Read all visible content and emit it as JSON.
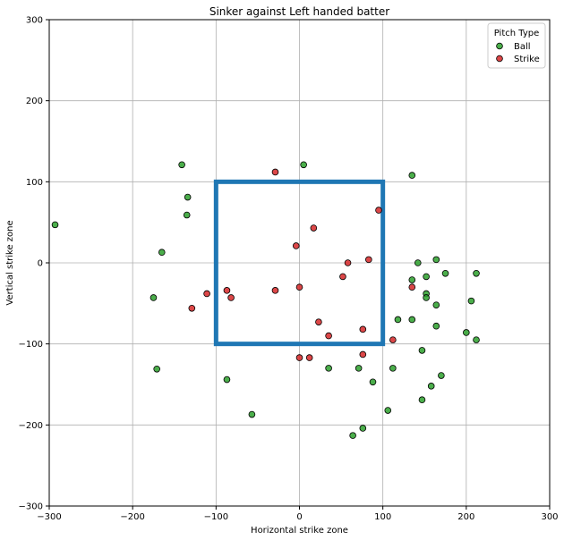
{
  "chart_data": {
    "type": "scatter",
    "title": "Sinker against Left handed batter",
    "xlabel": "Horizontal strike zone",
    "ylabel": "Vertical strike zone",
    "xlim": [
      -300,
      300
    ],
    "ylim": [
      -300,
      300
    ],
    "xticks": [
      -300,
      -200,
      -100,
      0,
      100,
      200,
      300
    ],
    "yticks": [
      -300,
      -200,
      -100,
      0,
      100,
      200,
      300
    ],
    "grid": true,
    "legend": {
      "title": "Pitch Type",
      "placement": "top-right"
    },
    "strike_zone": {
      "x": [
        -100,
        100
      ],
      "y": [
        -100,
        100
      ],
      "color": "#1f77b4"
    },
    "series": [
      {
        "name": "Ball",
        "color": "#2ca02c",
        "points": [
          [
            -293,
            47
          ],
          [
            -141,
            121
          ],
          [
            -134,
            81
          ],
          [
            -135,
            59
          ],
          [
            -165,
            13
          ],
          [
            -175,
            -43
          ],
          [
            -171,
            -131
          ],
          [
            -87,
            -144
          ],
          [
            -57,
            -187
          ],
          [
            5,
            121
          ],
          [
            135,
            108
          ],
          [
            142,
            0
          ],
          [
            164,
            4
          ],
          [
            175,
            -13
          ],
          [
            212,
            -13
          ],
          [
            135,
            -21
          ],
          [
            152,
            -17
          ],
          [
            152,
            -38
          ],
          [
            152,
            -43
          ],
          [
            164,
            -52
          ],
          [
            206,
            -47
          ],
          [
            118,
            -70
          ],
          [
            135,
            -70
          ],
          [
            164,
            -78
          ],
          [
            200,
            -86
          ],
          [
            212,
            -95
          ],
          [
            147,
            -108
          ],
          [
            35,
            -130
          ],
          [
            71,
            -130
          ],
          [
            112,
            -130
          ],
          [
            170,
            -139
          ],
          [
            88,
            -147
          ],
          [
            158,
            -152
          ],
          [
            106,
            -182
          ],
          [
            147,
            -169
          ],
          [
            76,
            -204
          ],
          [
            64,
            -213
          ]
        ]
      },
      {
        "name": "Strike",
        "color": "#d62728",
        "points": [
          [
            -29,
            112
          ],
          [
            95,
            65
          ],
          [
            17,
            43
          ],
          [
            -4,
            21
          ],
          [
            58,
            0
          ],
          [
            83,
            4
          ],
          [
            52,
            -17
          ],
          [
            0,
            -30
          ],
          [
            -29,
            -34
          ],
          [
            -87,
            -34
          ],
          [
            -111,
            -38
          ],
          [
            -82,
            -43
          ],
          [
            -129,
            -56
          ],
          [
            135,
            -30
          ],
          [
            23,
            -73
          ],
          [
            76,
            -82
          ],
          [
            35,
            -90
          ],
          [
            112,
            -95
          ],
          [
            76,
            -113
          ],
          [
            0,
            -117
          ],
          [
            12,
            -117
          ]
        ]
      }
    ]
  }
}
